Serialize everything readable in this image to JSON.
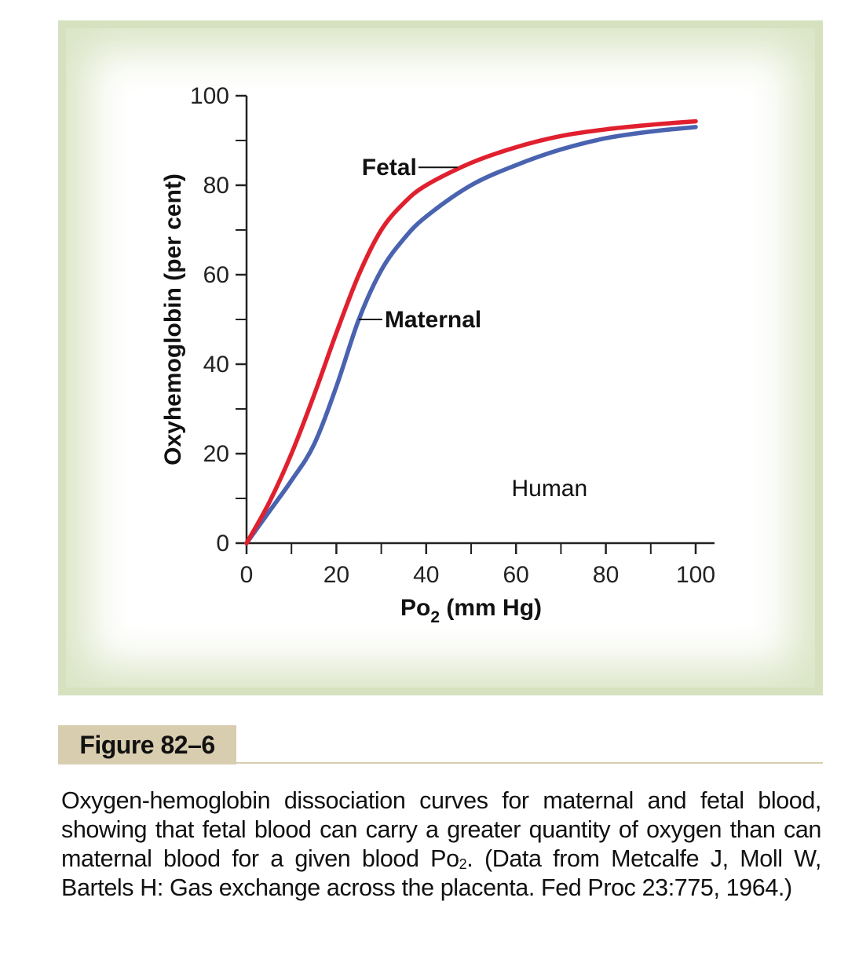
{
  "chart_data": {
    "type": "line",
    "xlabel_main": "Po",
    "xlabel_sub": "2",
    "xlabel_rest": " (mm Hg)",
    "ylabel": "Oxyhemoglobin (per cent)",
    "xlim": [
      0,
      100
    ],
    "ylim": [
      0,
      100
    ],
    "x_ticks": [
      0,
      20,
      40,
      60,
      80,
      100
    ],
    "x_minor_ticks": [
      10,
      30,
      50,
      70,
      90
    ],
    "y_ticks": [
      0,
      20,
      40,
      60,
      80,
      100
    ],
    "y_minor_ticks": [
      10,
      30,
      50,
      70,
      90
    ],
    "annotation": "Human",
    "grid": false,
    "series": [
      {
        "name": "Fetal",
        "color": "#e0202e",
        "points": [
          [
            0,
            0
          ],
          [
            5,
            9
          ],
          [
            10,
            20
          ],
          [
            15,
            33
          ],
          [
            20,
            47
          ],
          [
            25,
            60
          ],
          [
            30,
            70
          ],
          [
            35,
            76
          ],
          [
            40,
            80
          ],
          [
            50,
            85
          ],
          [
            60,
            88.5
          ],
          [
            70,
            91
          ],
          [
            80,
            92.5
          ],
          [
            90,
            93.5
          ],
          [
            100,
            94.3
          ]
        ]
      },
      {
        "name": "Maternal",
        "color": "#4a63b0",
        "points": [
          [
            0,
            0
          ],
          [
            5,
            7
          ],
          [
            10,
            14
          ],
          [
            15,
            22
          ],
          [
            20,
            35
          ],
          [
            25,
            50
          ],
          [
            30,
            61
          ],
          [
            35,
            68
          ],
          [
            40,
            73
          ],
          [
            50,
            80
          ],
          [
            60,
            84.5
          ],
          [
            70,
            88
          ],
          [
            80,
            90.5
          ],
          [
            90,
            92
          ],
          [
            100,
            93
          ]
        ]
      }
    ]
  },
  "figure": {
    "label": "Figure 82–6",
    "caption_part1": "Oxygen-hemoglobin dissociation curves for maternal and fetal blood, showing that fetal blood can carry a greater quantity of oxygen than can maternal blood for a given blood Po",
    "caption_sub": "2",
    "caption_part2": ". (Data from Metcalfe J, Moll W, Bartels H: Gas exchange across the placenta. Fed Proc 23:775, 1964.)"
  }
}
